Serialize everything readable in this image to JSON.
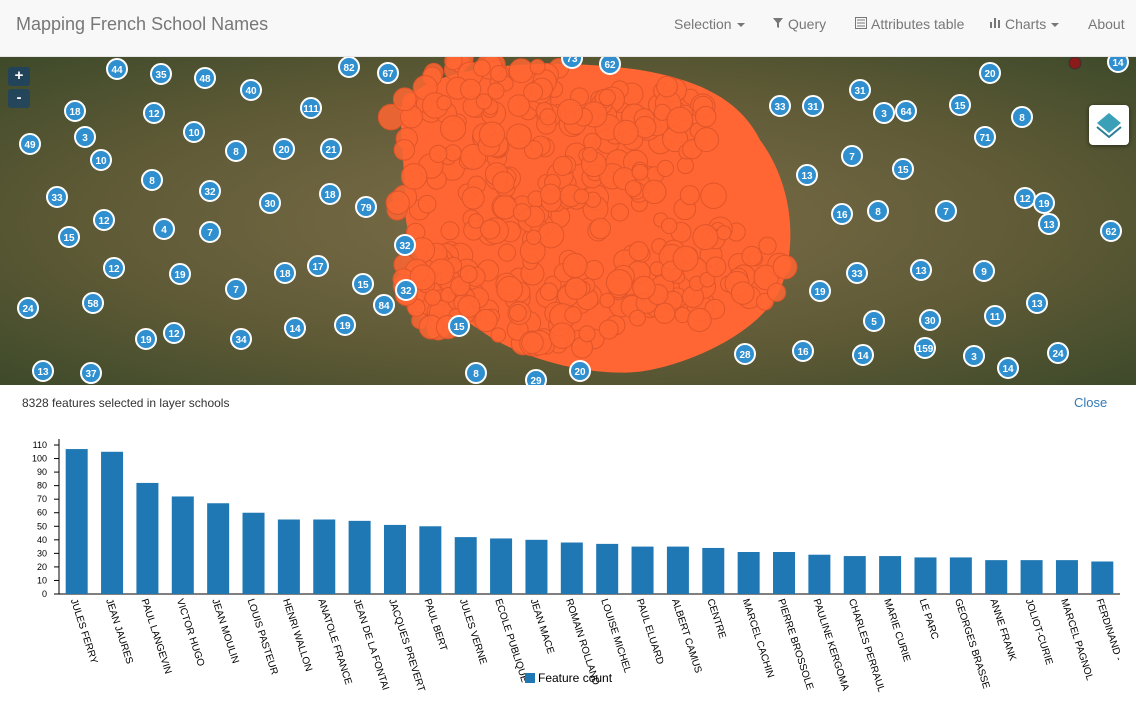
{
  "header": {
    "title": "Mapping French School Names",
    "nav": [
      "Selection",
      "Query",
      "Attributes table",
      "Charts",
      "About"
    ]
  },
  "map": {
    "zoom_in": "+",
    "zoom_out": "-",
    "clusters": [
      44,
      35,
      48,
      82,
      67,
      73,
      62,
      20,
      14,
      40,
      111,
      18,
      12,
      33,
      31,
      31,
      3,
      64,
      15,
      8,
      49,
      3,
      10,
      8,
      20,
      21,
      71,
      10,
      7,
      15,
      8,
      32,
      13,
      33,
      30,
      18,
      79,
      12,
      19,
      12,
      4,
      7,
      15,
      16,
      8,
      7,
      13,
      62,
      32,
      12,
      19,
      18,
      17,
      33,
      13,
      9,
      7,
      15,
      32,
      84,
      19,
      58,
      24,
      13,
      14,
      19,
      15,
      12,
      19,
      34,
      5,
      30,
      11,
      28,
      16,
      14,
      159,
      3,
      24,
      13,
      37,
      8,
      20,
      29,
      14
    ]
  },
  "panel": {
    "status": "8328 features selected in layer schools",
    "close": "Close"
  },
  "chart_data": {
    "type": "bar",
    "categories": [
      "JULES FERRY",
      "JEAN JAURES",
      "PAUL LANGEVIN",
      "VICTOR HUGO",
      "JEAN MOULIN",
      "LOUIS PASTEUR",
      "HENRI WALLON",
      "ANATOLE FRANCE",
      "JEAN DE LA FONTAI",
      "JACQUES PREVERT",
      "PAUL BERT",
      "JULES VERNE",
      "ECOLE PUBLIQUE",
      "JEAN MACE",
      "ROMAIN ROLLAND",
      "LOUISE MICHEL",
      "PAUL ELUARD",
      "ALBERT CAMUS",
      "CENTRE",
      "MARCEL CACHIN",
      "PIERRE BROSSOLE",
      "PAULINE KERGOMA",
      "CHARLES PERRAUL",
      "MARIE CURIE",
      "LE PARC",
      "GEORGES BRASSE",
      "ANNE FRANK",
      "JOLIOT-CURIE",
      "MARCEL PAGNOL",
      "FERDINAND -"
    ],
    "series": [
      {
        "name": "Feature count",
        "color": "#1f77b4",
        "values": [
          107,
          105,
          82,
          72,
          67,
          60,
          55,
          55,
          54,
          51,
          50,
          42,
          41,
          40,
          38,
          37,
          35,
          35,
          34,
          31,
          31,
          29,
          28,
          28,
          27,
          27,
          25,
          25,
          25,
          24
        ]
      }
    ],
    "ylim": [
      0,
      110
    ],
    "yticks": [
      0,
      10,
      20,
      30,
      40,
      50,
      60,
      70,
      80,
      90,
      100,
      110
    ]
  }
}
